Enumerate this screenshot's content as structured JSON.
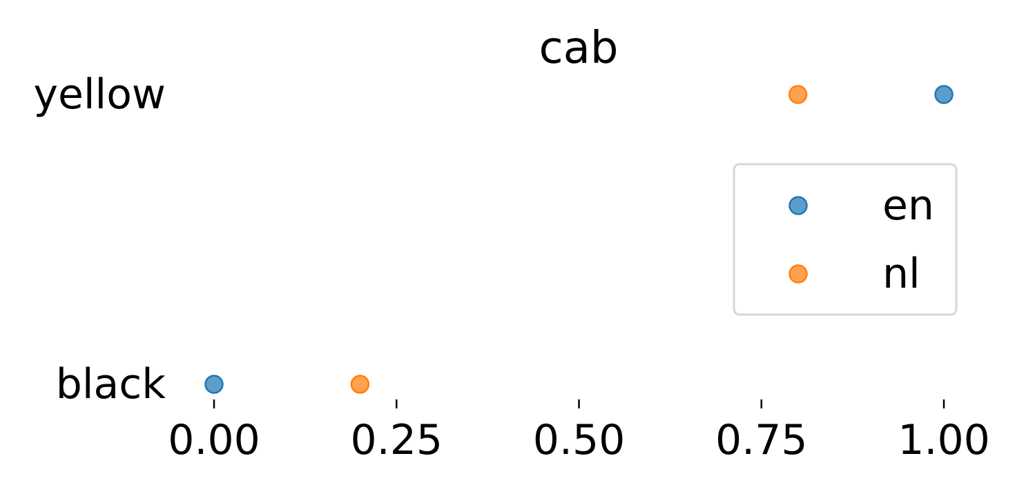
{
  "chart_data": {
    "type": "scatter",
    "title": "cab",
    "xlabel": "",
    "ylabel": "",
    "categories": [
      "black",
      "yellow"
    ],
    "xlim": [
      0,
      1
    ],
    "x_ticks": [
      "0.00",
      "0.25",
      "0.50",
      "0.75",
      "1.00"
    ],
    "x_tick_values": [
      0.0,
      0.25,
      0.5,
      0.75,
      1.0
    ],
    "grid": false,
    "legend_position": "center-right",
    "series": [
      {
        "name": "en",
        "color": "#1f77b4",
        "values": [
          0.0,
          1.0
        ]
      },
      {
        "name": "nl",
        "color": "#ff7f0e",
        "values": [
          0.2,
          0.8
        ]
      }
    ]
  }
}
